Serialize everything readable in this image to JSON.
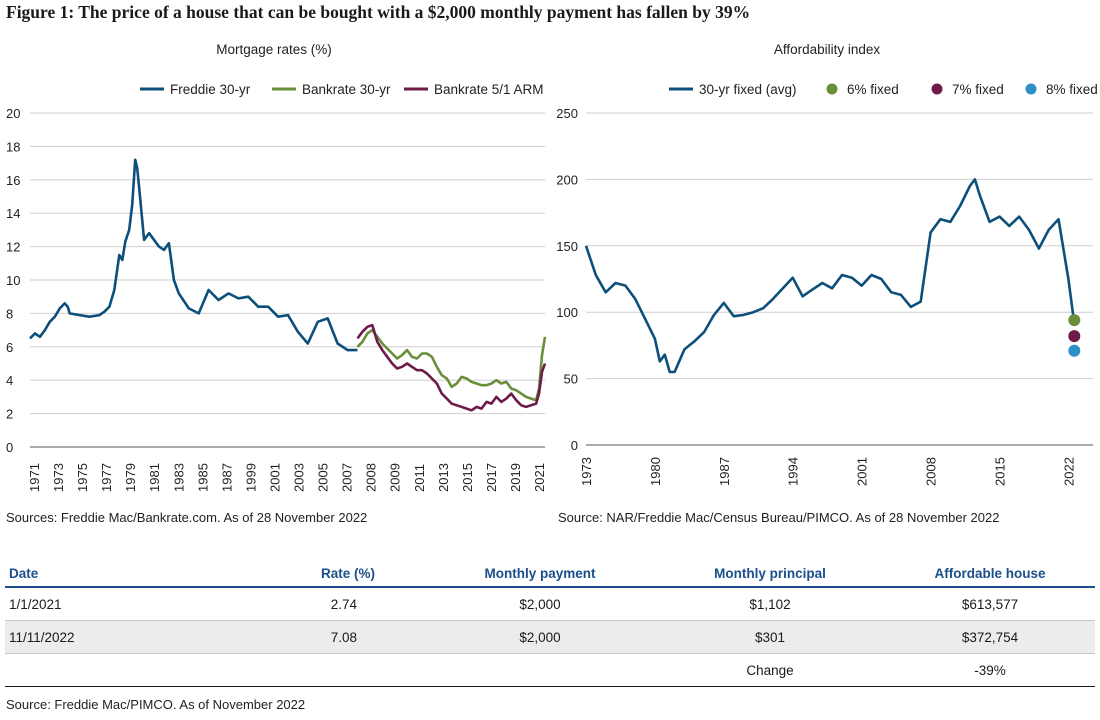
{
  "figure_title": "Figure 1: The price of a house that can be bought with a $2,000 monthly payment has fallen by 39%",
  "chart_data": [
    {
      "type": "line",
      "title": "Mortgage rates (%)",
      "ylim": [
        0,
        20
      ],
      "yticks": [
        0,
        2,
        4,
        6,
        8,
        10,
        12,
        14,
        16,
        18,
        20
      ],
      "xlim": [
        1971,
        2022.9
      ],
      "xticks": [
        "1971",
        "1973",
        "1975",
        "1977",
        "1979",
        "1981",
        "1983",
        "1985",
        "1987",
        "1999",
        "2001",
        "2003",
        "2005",
        "2007",
        "2008",
        "2009",
        "2011",
        "2013",
        "2015",
        "2017",
        "2019",
        "2021"
      ],
      "grid": true,
      "legend_position": "top",
      "colors": {
        "freddie": "#0c4f7a",
        "bankrate30": "#6b8e3a",
        "arm": "#6e1a4a"
      },
      "series": [
        {
          "name": "Freddie 30-yr",
          "x": [
            1971,
            1971.5,
            1972,
            1972.5,
            1973,
            1973.5,
            1974,
            1974.5,
            1974.8,
            1975,
            1976,
            1977,
            1978,
            1978.5,
            1979,
            1979.5,
            1980,
            1980.3,
            1980.6,
            1981,
            1981.3,
            1981.6,
            1981.8,
            1982,
            1982.5,
            1983,
            1984,
            1984.5,
            1985,
            1985.5,
            1986,
            1987,
            1988,
            1989,
            1990,
            1991,
            1992,
            1993,
            1994,
            1995,
            1996,
            1997,
            1998,
            1999,
            2000,
            2001,
            2002,
            2003,
            2004
          ],
          "values": [
            6.5,
            6.8,
            6.6,
            7,
            7.5,
            7.8,
            8.3,
            8.6,
            8.4,
            8,
            7.9,
            7.8,
            7.9,
            8.1,
            8.4,
            9.4,
            11.5,
            11.2,
            12.3,
            13,
            14.5,
            17.2,
            16.7,
            15.5,
            12.4,
            12.8,
            12,
            11.8,
            12.2,
            10,
            9.2,
            8.3,
            8,
            9.4,
            8.8,
            9.2,
            8.9,
            9,
            8.4,
            8.4,
            7.8,
            7.9,
            6.9,
            6.2,
            7.5,
            7.7,
            6.2,
            5.8,
            5.8
          ]
        },
        {
          "name": "Bankrate 30-yr",
          "x": [
            2004,
            2004.5,
            2005,
            2005.5,
            2006,
            2006.5,
            2007,
            2007.5,
            2008,
            2008.5,
            2009,
            2009.5,
            2010,
            2010.5,
            2011,
            2011.5,
            2012,
            2012.5,
            2013,
            2013.5,
            2014,
            2014.5,
            2015,
            2015.5,
            2016,
            2016.5,
            2017,
            2017.5,
            2018,
            2018.5,
            2019,
            2019.5,
            2020,
            2020.5,
            2021,
            2021.5,
            2022,
            2022.3,
            2022.6,
            2022.9
          ],
          "values": [
            6,
            6.3,
            6.8,
            7,
            6.6,
            6.2,
            5.9,
            5.6,
            5.3,
            5.5,
            5.8,
            5.4,
            5.3,
            5.6,
            5.6,
            5.4,
            4.8,
            4.3,
            4.1,
            3.6,
            3.8,
            4.2,
            4.1,
            3.9,
            3.8,
            3.7,
            3.7,
            3.8,
            4,
            3.8,
            3.9,
            3.5,
            3.4,
            3.2,
            3,
            2.9,
            2.8,
            3.5,
            5.5,
            6.6
          ]
        },
        {
          "name": "Bankrate 5/1 ARM",
          "x": [
            2004,
            2004.5,
            2005,
            2005.5,
            2006,
            2006.5,
            2007,
            2007.5,
            2008,
            2008.5,
            2009,
            2009.5,
            2010,
            2010.5,
            2011,
            2011.5,
            2012,
            2012.5,
            2013,
            2013.5,
            2014,
            2014.5,
            2015,
            2015.5,
            2016,
            2016.5,
            2017,
            2017.5,
            2018,
            2018.5,
            2019,
            2019.5,
            2020,
            2020.5,
            2021,
            2021.5,
            2022,
            2022.3,
            2022.6,
            2022.9
          ],
          "values": [
            6.5,
            6.9,
            7.2,
            7.3,
            6.3,
            5.8,
            5.4,
            5,
            4.7,
            4.8,
            5,
            4.8,
            4.6,
            4.6,
            4.4,
            4.1,
            3.8,
            3.2,
            2.9,
            2.6,
            2.5,
            2.4,
            2.3,
            2.2,
            2.4,
            2.3,
            2.7,
            2.6,
            3,
            2.7,
            2.9,
            3.2,
            2.8,
            2.5,
            2.4,
            2.5,
            2.6,
            3.2,
            4.5,
            5
          ]
        }
      ]
    },
    {
      "type": "line",
      "title": "Affordability index",
      "ylim": [
        0,
        250
      ],
      "yticks": [
        0,
        50,
        100,
        150,
        200,
        250
      ],
      "xlim": [
        1973,
        2024.5
      ],
      "xticks": [
        "1973",
        "1980",
        "1987",
        "1994",
        "2001",
        "2008",
        "2015",
        "2022"
      ],
      "grid": true,
      "legend_position": "top",
      "colors": {
        "avg": "#0c4f7a",
        "fixed6": "#6b8e3a",
        "fixed7": "#6e1a4a",
        "fixed8": "#2e8fc9"
      },
      "series": [
        {
          "name": "30-yr fixed (avg)",
          "x": [
            1973,
            1974,
            1975,
            1976,
            1977,
            1978,
            1979,
            1980,
            1980.5,
            1981,
            1981.5,
            1982,
            1983,
            1984,
            1985,
            1986,
            1987,
            1988,
            1989,
            1990,
            1991,
            1992,
            1993,
            1994,
            1995,
            1996,
            1997,
            1998,
            1999,
            2000,
            2001,
            2002,
            2003,
            2004,
            2005,
            2006,
            2007,
            2008,
            2009,
            2010,
            2011,
            2012,
            2012.5,
            2013,
            2014,
            2015,
            2016,
            2017,
            2018,
            2019,
            2020,
            2021,
            2022,
            2022.5
          ],
          "values": [
            150,
            128,
            115,
            122,
            120,
            110,
            95,
            80,
            63,
            68,
            55,
            55,
            72,
            78,
            85,
            98,
            107,
            97,
            98,
            100,
            103,
            110,
            118,
            126,
            112,
            117,
            122,
            118,
            128,
            126,
            120,
            128,
            125,
            115,
            113,
            104,
            108,
            160,
            170,
            168,
            180,
            195,
            200,
            188,
            168,
            172,
            165,
            172,
            162,
            148,
            162,
            170,
            125,
            97
          ]
        }
      ],
      "points": [
        {
          "name": "6% fixed",
          "x": 2022.6,
          "value": 94
        },
        {
          "name": "7% fixed",
          "x": 2022.6,
          "value": 82
        },
        {
          "name": "8% fixed",
          "x": 2022.6,
          "value": 71
        }
      ]
    }
  ],
  "sources": {
    "left": "Sources: Freddie Mac/Bankrate.com. As of 28 November 2022",
    "right": "Source: NAR/Freddie Mac/Census Bureau/PIMCO. As of 28 November 2022",
    "bottom": "Source: Freddie Mac/PIMCO. As of November 2022"
  },
  "table": {
    "headers": {
      "date": "Date",
      "rate": "Rate (%)",
      "payment": "Monthly payment",
      "principal": "Monthly principal",
      "house": "Affordable house"
    },
    "rows": [
      {
        "date": "1/1/2021",
        "rate": "2.74",
        "payment": "$2,000",
        "principal": "$1,102",
        "house": "$613,577"
      },
      {
        "date": "11/11/2022",
        "rate": "7.08",
        "payment": "$2,000",
        "principal": "$301",
        "house": "$372,754"
      }
    ],
    "change_label": "Change",
    "change_value": "-39%"
  }
}
